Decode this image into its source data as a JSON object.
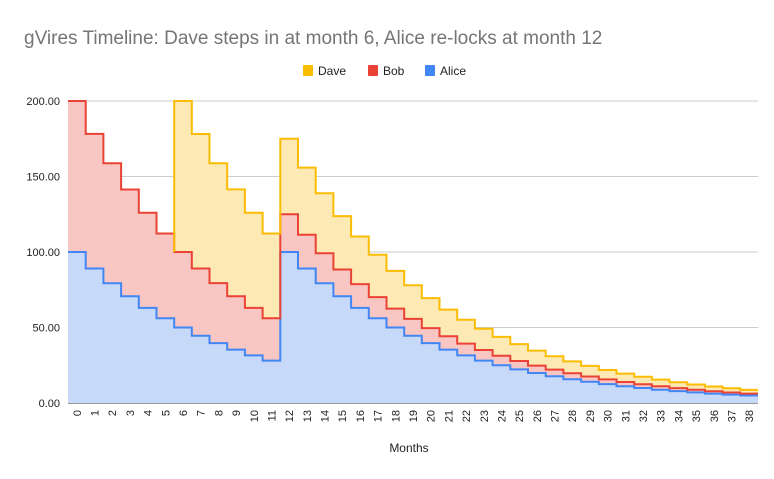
{
  "chart_data": {
    "type": "area",
    "subtype": "stacked-stepped",
    "title": "gVires Timeline: Dave steps in at month 6, Alice re-locks at month 12",
    "xlabel": "Months",
    "ylabel": "",
    "ylim": [
      0,
      200
    ],
    "yticks": [
      "0.00",
      "50.00",
      "100.00",
      "150.00",
      "200.00"
    ],
    "grid": true,
    "legend_position": "top",
    "categories": [
      "0",
      "1",
      "2",
      "3",
      "4",
      "5",
      "6",
      "7",
      "8",
      "9",
      "10",
      "11",
      "12",
      "13",
      "14",
      "15",
      "16",
      "17",
      "18",
      "19",
      "20",
      "21",
      "22",
      "23",
      "24",
      "25",
      "26",
      "27",
      "28",
      "29",
      "30",
      "31",
      "32",
      "33",
      "34",
      "35",
      "36",
      "37",
      "38"
    ],
    "series": [
      {
        "name": "Alice",
        "color": "#4285f4",
        "fill": "#c6d9f8",
        "values": [
          100,
          89.09,
          79.37,
          70.71,
          63.0,
          56.12,
          50,
          44.54,
          39.69,
          35.36,
          31.5,
          28.06,
          100,
          89.09,
          79.37,
          70.71,
          63.0,
          56.12,
          50,
          44.54,
          39.69,
          35.36,
          31.5,
          28.06,
          25,
          22.27,
          19.84,
          17.68,
          15.75,
          14.03,
          12.5,
          11.14,
          9.92,
          8.84,
          7.87,
          7.02,
          6.25,
          5.57,
          4.96
        ]
      },
      {
        "name": "Bob",
        "color": "#ea4335",
        "fill": "#f8c7c3",
        "values": [
          100,
          89.09,
          79.37,
          70.71,
          63.0,
          56.12,
          50,
          44.54,
          39.69,
          35.36,
          31.5,
          28.06,
          25,
          22.27,
          19.84,
          17.68,
          15.75,
          14.03,
          12.5,
          11.14,
          9.92,
          8.84,
          7.87,
          7.02,
          6.25,
          5.57,
          4.96,
          4.42,
          3.94,
          3.51,
          3.13,
          2.78,
          2.48,
          2.21,
          1.97,
          1.75,
          1.56,
          1.39,
          1.24
        ]
      },
      {
        "name": "Dave",
        "color": "#fbbc04",
        "fill": "#fde9b3",
        "values": [
          0,
          0,
          0,
          0,
          0,
          0,
          100,
          89.09,
          79.37,
          70.71,
          63.0,
          56.12,
          50,
          44.54,
          39.69,
          35.36,
          31.5,
          28.06,
          25,
          22.27,
          19.84,
          17.68,
          15.75,
          14.03,
          12.5,
          11.14,
          9.92,
          8.84,
          7.87,
          7.02,
          6.25,
          5.57,
          4.96,
          4.42,
          3.94,
          3.51,
          3.13,
          2.78,
          2.48
        ]
      }
    ],
    "legend_order": [
      "Dave",
      "Bob",
      "Alice"
    ]
  }
}
